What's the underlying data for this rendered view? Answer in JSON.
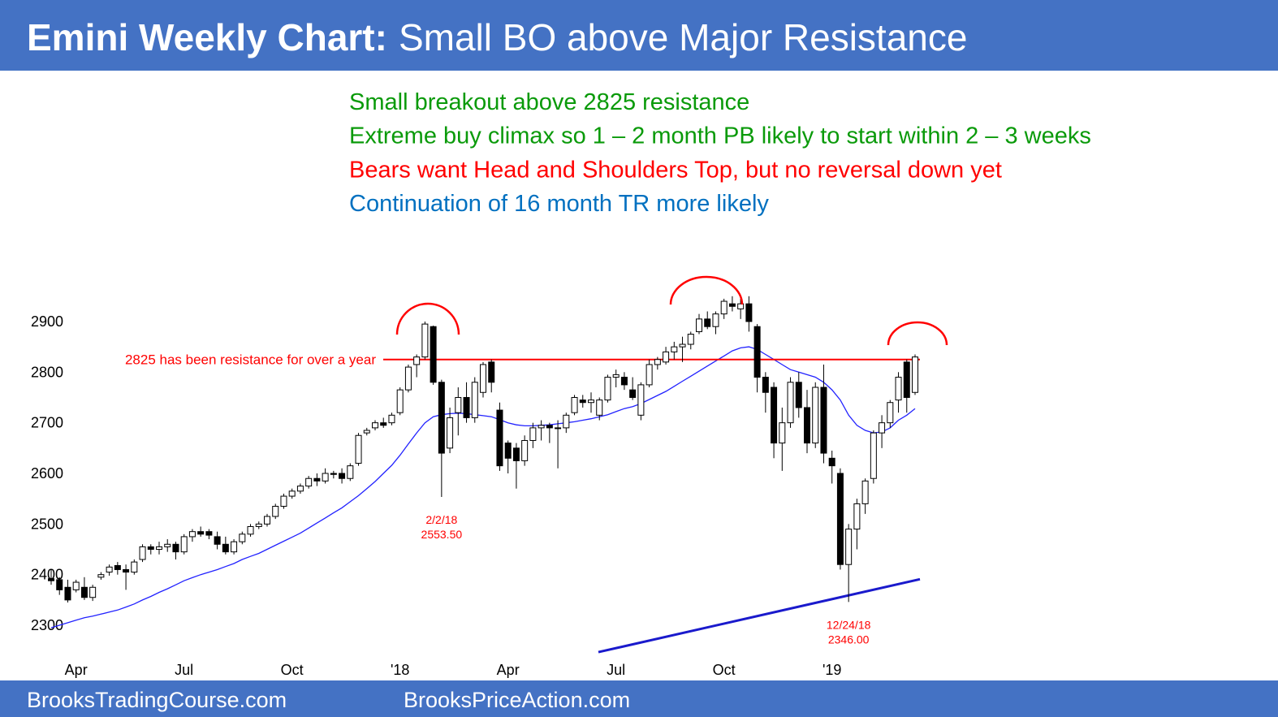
{
  "header": {
    "title": "Emini Weekly Chart:",
    "subtitle": "Small BO above Major Resistance"
  },
  "notes": [
    {
      "text": "Small breakout above 2825 resistance",
      "color": "#0a9a0a"
    },
    {
      "text": "Extreme buy climax so 1 – 2 month PB likely to start within 2 – 3 weeks",
      "color": "#0a9a0a"
    },
    {
      "text": "Bears want Head and Shoulders Top, but no reversal down yet",
      "color": "#ff0000"
    },
    {
      "text": "Continuation of 16 month TR more likely",
      "color": "#0070c0"
    }
  ],
  "footer": {
    "left": "BrooksTradingCourse.com",
    "right": "BrooksPriceAction.com"
  },
  "chart_data": {
    "type": "candlestick",
    "categories": [
      null,
      null,
      null,
      "Apr",
      null,
      null,
      null,
      null,
      null,
      null,
      null,
      null,
      null,
      null,
      null,
      null,
      "Jul",
      null,
      null,
      null,
      null,
      null,
      null,
      null,
      null,
      null,
      null,
      null,
      null,
      "Oct",
      null,
      null,
      null,
      null,
      null,
      null,
      null,
      null,
      null,
      null,
      null,
      null,
      "'18",
      null,
      null,
      null,
      null,
      null,
      null,
      null,
      null,
      null,
      null,
      null,
      null,
      "Apr",
      null,
      null,
      null,
      null,
      null,
      null,
      null,
      null,
      null,
      null,
      null,
      null,
      "Jul",
      null,
      null,
      null,
      null,
      null,
      null,
      null,
      null,
      null,
      null,
      null,
      null,
      "Oct",
      null,
      null,
      null,
      null,
      null,
      null,
      null,
      null,
      null,
      null,
      null,
      null,
      "'19",
      null,
      null,
      null,
      null,
      null,
      null,
      null,
      null,
      null,
      null
    ],
    "open": [
      2392,
      2390,
      2375,
      2370,
      2375,
      2355,
      2395,
      2405,
      2418,
      2410,
      2405,
      2430,
      2455,
      2450,
      2455,
      2460,
      2445,
      2475,
      2485,
      2485,
      2475,
      2460,
      2445,
      2465,
      2480,
      2495,
      2500,
      2515,
      2535,
      2555,
      2565,
      2575,
      2590,
      2585,
      2600,
      2600,
      2590,
      2620,
      2680,
      2690,
      2700,
      2700,
      2720,
      2765,
      2815,
      2830,
      2890,
      2780,
      2650,
      2720,
      2750,
      2710,
      2760,
      2820,
      2725,
      2660,
      2650,
      2625,
      2665,
      2690,
      2695,
      2690,
      2690,
      2720,
      2745,
      2740,
      2715,
      2745,
      2790,
      2790,
      2765,
      2715,
      2775,
      2815,
      2820,
      2840,
      2850,
      2855,
      2880,
      2905,
      2890,
      2915,
      2935,
      2925,
      2935,
      2890,
      2790,
      2770,
      2660,
      2700,
      2780,
      2730,
      2660,
      2770,
      2630,
      2600,
      2420,
      2490,
      2540,
      2590,
      2680,
      2700,
      2745,
      2820,
      2760
    ],
    "high": [
      2410,
      2395,
      2390,
      2390,
      2395,
      2380,
      2405,
      2420,
      2425,
      2420,
      2430,
      2460,
      2460,
      2465,
      2470,
      2465,
      2480,
      2490,
      2495,
      2490,
      2485,
      2475,
      2470,
      2485,
      2500,
      2505,
      2520,
      2540,
      2560,
      2570,
      2580,
      2595,
      2600,
      2610,
      2605,
      2610,
      2620,
      2680,
      2690,
      2705,
      2710,
      2720,
      2770,
      2815,
      2835,
      2900,
      2892,
      2785,
      2730,
      2770,
      2780,
      2790,
      2820,
      2825,
      2740,
      2665,
      2660,
      2675,
      2700,
      2705,
      2700,
      2705,
      2720,
      2755,
      2755,
      2760,
      2750,
      2795,
      2805,
      2800,
      2790,
      2780,
      2825,
      2830,
      2850,
      2860,
      2870,
      2880,
      2915,
      2920,
      2920,
      2945,
      2950,
      2945,
      2950,
      2895,
      2800,
      2780,
      2730,
      2790,
      2800,
      2765,
      2780,
      2815,
      2645,
      2610,
      2500,
      2550,
      2590,
      2685,
      2715,
      2745,
      2800,
      2825,
      2835
    ],
    "low": [
      2380,
      2360,
      2345,
      2365,
      2350,
      2348,
      2390,
      2398,
      2400,
      2370,
      2400,
      2425,
      2440,
      2440,
      2445,
      2430,
      2440,
      2465,
      2475,
      2470,
      2450,
      2440,
      2440,
      2460,
      2475,
      2490,
      2495,
      2510,
      2530,
      2550,
      2560,
      2570,
      2575,
      2580,
      2590,
      2580,
      2585,
      2615,
      2675,
      2685,
      2690,
      2695,
      2715,
      2760,
      2790,
      2825,
      2775,
      2553.5,
      2640,
      2675,
      2700,
      2700,
      2750,
      2760,
      2605,
      2600,
      2570,
      2615,
      2650,
      2665,
      2660,
      2610,
      2680,
      2715,
      2730,
      2720,
      2705,
      2740,
      2770,
      2765,
      2745,
      2705,
      2770,
      2805,
      2815,
      2825,
      2820,
      2845,
      2875,
      2885,
      2875,
      2905,
      2920,
      2905,
      2880,
      2760,
      2720,
      2630,
      2605,
      2690,
      2710,
      2640,
      2650,
      2620,
      2580,
      2410,
      2346,
      2450,
      2520,
      2580,
      2650,
      2690,
      2720,
      2720,
      2755
    ],
    "close": [
      2388,
      2370,
      2350,
      2385,
      2355,
      2375,
      2400,
      2415,
      2410,
      2405,
      2425,
      2455,
      2450,
      2455,
      2460,
      2445,
      2475,
      2485,
      2480,
      2478,
      2460,
      2445,
      2465,
      2480,
      2495,
      2500,
      2515,
      2535,
      2555,
      2565,
      2575,
      2590,
      2585,
      2600,
      2598,
      2590,
      2615,
      2675,
      2685,
      2700,
      2695,
      2715,
      2765,
      2810,
      2830,
      2895,
      2780,
      2640,
      2710,
      2750,
      2710,
      2780,
      2815,
      2780,
      2615,
      2630,
      2625,
      2665,
      2690,
      2695,
      2690,
      2690,
      2715,
      2750,
      2740,
      2745,
      2745,
      2790,
      2795,
      2775,
      2750,
      2775,
      2815,
      2825,
      2840,
      2850,
      2855,
      2875,
      2905,
      2890,
      2915,
      2940,
      2930,
      2935,
      2900,
      2790,
      2760,
      2660,
      2700,
      2780,
      2730,
      2660,
      2770,
      2640,
      2615,
      2420,
      2490,
      2540,
      2585,
      2680,
      2700,
      2740,
      2790,
      2750,
      2830
    ],
    "up_color": "#ffffff",
    "down_color": "#000000",
    "edge_color": "#000000",
    "ma": {
      "color": "#2222ff",
      "values": [
        2295,
        2300,
        2305,
        2310,
        2315,
        2318,
        2322,
        2326,
        2330,
        2336,
        2342,
        2350,
        2357,
        2365,
        2372,
        2380,
        2388,
        2394,
        2400,
        2405,
        2410,
        2416,
        2422,
        2430,
        2436,
        2442,
        2450,
        2458,
        2466,
        2474,
        2482,
        2492,
        2502,
        2512,
        2522,
        2532,
        2544,
        2556,
        2570,
        2584,
        2600,
        2616,
        2636,
        2658,
        2680,
        2700,
        2712,
        2716,
        2718,
        2719,
        2718,
        2716,
        2714,
        2712,
        2706,
        2700,
        2696,
        2694,
        2694,
        2695,
        2696,
        2698,
        2700,
        2702,
        2705,
        2708,
        2712,
        2716,
        2722,
        2728,
        2732,
        2738,
        2746,
        2754,
        2762,
        2772,
        2782,
        2792,
        2802,
        2812,
        2822,
        2832,
        2842,
        2848,
        2850,
        2845,
        2835,
        2825,
        2815,
        2805,
        2800,
        2795,
        2790,
        2780,
        2765,
        2745,
        2715,
        2695,
        2685,
        2680,
        2682,
        2690,
        2705,
        2715,
        2728
      ]
    },
    "resistance": {
      "value": 2825,
      "label": "2825 has been resistance for over a year",
      "color": "#ff0000"
    },
    "trendline": {
      "values": [
        2247,
        2391
      ],
      "color": "#1a1acc"
    },
    "annotations": {
      "dates": [
        "2/2/18",
        "12/24/18"
      ],
      "values": [
        2553.5,
        2346
      ],
      "value_labels": [
        "2553.50",
        "2346.00"
      ],
      "color": "#ff0000"
    },
    "ylim": [
      2250,
      2950
    ],
    "yticks": [
      2300,
      2400,
      2500,
      2600,
      2700,
      2800,
      2900
    ]
  }
}
